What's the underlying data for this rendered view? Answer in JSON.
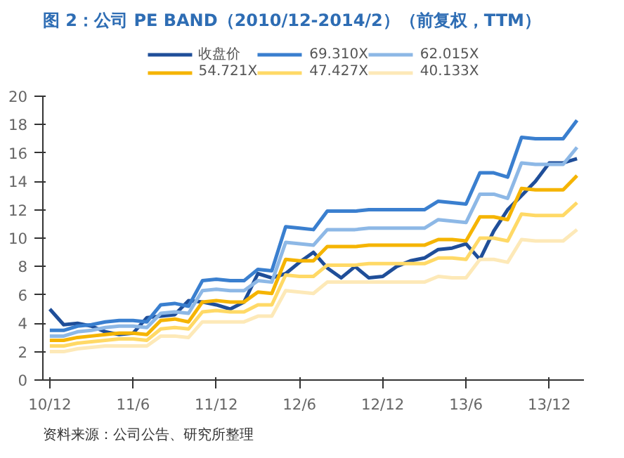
{
  "chart_data": {
    "type": "line",
    "title": "图 2：公司 PE BAND（2010/12-2014/2）（前复权，TTM）",
    "categories": [
      "10/12",
      null,
      null,
      null,
      null,
      null,
      "11/6",
      null,
      null,
      null,
      null,
      null,
      "11/12",
      null,
      null,
      null,
      null,
      null,
      "12/6",
      null,
      null,
      null,
      null,
      null,
      "12/12",
      null,
      null,
      null,
      null,
      null,
      "13/6",
      null,
      null,
      null,
      null,
      null,
      "13/12",
      null,
      null
    ],
    "series": [
      {
        "name": "收盘价",
        "color": "#1f4e99",
        "values": [
          5.0,
          3.9,
          4.0,
          3.8,
          3.4,
          3.2,
          3.3,
          4.4,
          4.5,
          4.6,
          5.6,
          5.5,
          5.3,
          5.0,
          5.5,
          7.5,
          7.2,
          7.5,
          8.3,
          9.0,
          7.9,
          7.2,
          8.0,
          7.2,
          7.3,
          8.0,
          8.4,
          8.6,
          9.2,
          9.3,
          9.6,
          8.5,
          10.5,
          12.0,
          13.0,
          14.0,
          15.3,
          15.3,
          15.6
        ]
      },
      {
        "name": "69.310X",
        "color": "#3a7fcf",
        "values": [
          3.5,
          3.5,
          3.8,
          3.9,
          4.1,
          4.2,
          4.2,
          4.1,
          5.3,
          5.4,
          5.2,
          7.0,
          7.1,
          7.0,
          7.0,
          7.8,
          7.7,
          10.8,
          10.7,
          10.6,
          11.9,
          11.9,
          11.9,
          12.0,
          12.0,
          12.0,
          12.0,
          12.0,
          12.6,
          12.5,
          12.4,
          14.6,
          14.6,
          14.3,
          17.1,
          17.0,
          17.0,
          17.0,
          18.3
        ]
      },
      {
        "name": "62.015X",
        "color": "#8db8e6",
        "values": [
          3.1,
          3.1,
          3.4,
          3.5,
          3.7,
          3.8,
          3.8,
          3.7,
          4.7,
          4.8,
          4.7,
          6.3,
          6.4,
          6.3,
          6.3,
          7.0,
          6.9,
          9.7,
          9.6,
          9.5,
          10.6,
          10.6,
          10.6,
          10.7,
          10.7,
          10.7,
          10.7,
          10.7,
          11.3,
          11.2,
          11.1,
          13.1,
          13.1,
          12.8,
          15.3,
          15.2,
          15.2,
          15.2,
          16.4
        ]
      },
      {
        "name": "54.721X",
        "color": "#f5b400",
        "values": [
          2.8,
          2.8,
          3.0,
          3.1,
          3.2,
          3.3,
          3.3,
          3.2,
          4.2,
          4.3,
          4.1,
          5.5,
          5.6,
          5.5,
          5.5,
          6.2,
          6.1,
          8.5,
          8.4,
          8.4,
          9.4,
          9.4,
          9.4,
          9.5,
          9.5,
          9.5,
          9.5,
          9.5,
          9.9,
          9.9,
          9.8,
          11.5,
          11.5,
          11.3,
          13.5,
          13.4,
          13.4,
          13.4,
          14.4
        ]
      },
      {
        "name": "47.427X",
        "color": "#ffd966",
        "values": [
          2.4,
          2.4,
          2.6,
          2.7,
          2.8,
          2.9,
          2.9,
          2.8,
          3.6,
          3.7,
          3.6,
          4.8,
          4.9,
          4.8,
          4.8,
          5.3,
          5.3,
          7.4,
          7.3,
          7.3,
          8.1,
          8.1,
          8.1,
          8.2,
          8.2,
          8.2,
          8.2,
          8.2,
          8.6,
          8.6,
          8.5,
          10.0,
          10.0,
          9.8,
          11.7,
          11.6,
          11.6,
          11.6,
          12.5
        ]
      },
      {
        "name": "40.133X",
        "color": "#fde9b8",
        "values": [
          2.0,
          2.0,
          2.2,
          2.3,
          2.4,
          2.4,
          2.4,
          2.4,
          3.1,
          3.1,
          3.0,
          4.1,
          4.1,
          4.1,
          4.1,
          4.5,
          4.5,
          6.3,
          6.2,
          6.1,
          6.9,
          6.9,
          6.9,
          6.9,
          6.9,
          6.9,
          6.9,
          6.9,
          7.3,
          7.2,
          7.2,
          8.5,
          8.5,
          8.3,
          9.9,
          9.8,
          9.8,
          9.8,
          10.6
        ]
      }
    ],
    "ylim": [
      0,
      20
    ],
    "yticks": [
      0,
      2,
      4,
      6,
      8,
      10,
      12,
      14,
      16,
      18,
      20
    ],
    "grid": false,
    "legend": "top",
    "marker": "none",
    "line_style": "solid",
    "annotations": [
      "资料来源：公司公告、研究所整理"
    ]
  }
}
